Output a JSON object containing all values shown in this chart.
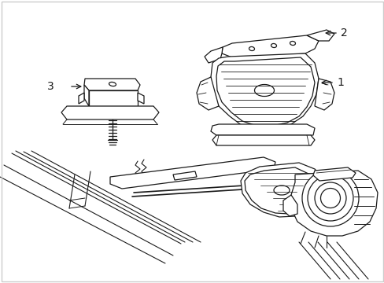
{
  "background_color": "#ffffff",
  "line_color": "#1a1a1a",
  "line_width": 0.9,
  "fig_width": 4.89,
  "fig_height": 3.6,
  "dpi": 100,
  "label_1": "1",
  "label_2": "2",
  "label_3": "3",
  "label_fontsize": 10,
  "border_color": "#cccccc"
}
